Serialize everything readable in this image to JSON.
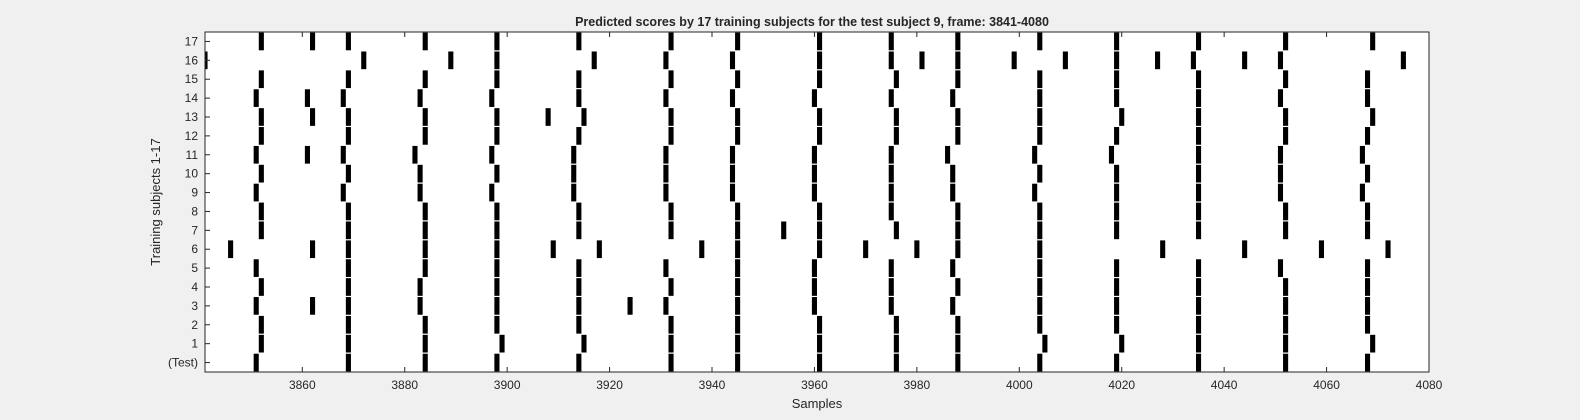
{
  "chart_data": {
    "type": "heatmap",
    "title": "Predicted scores by 17 training subjects for the test subject 9, frame: 3841-4080",
    "xlabel": "Samples",
    "ylabel": "Training subjects 1-17",
    "xlim": [
      3841,
      4080
    ],
    "x_ticks": [
      3860,
      3880,
      3900,
      3920,
      3940,
      3960,
      3980,
      4000,
      4020,
      4040,
      4060,
      4080
    ],
    "y_tick_labels": [
      "(Test)",
      "1",
      "2",
      "3",
      "4",
      "5",
      "6",
      "7",
      "8",
      "9",
      "10",
      "11",
      "12",
      "13",
      "14",
      "15",
      "16",
      "17"
    ],
    "rows": [
      {
        "label": "(Test)",
        "marks": [
          3851,
          3869,
          3884,
          3898,
          3914,
          3932,
          3945,
          3961,
          3976,
          3988,
          4004,
          4019,
          4035,
          4052,
          4068
        ]
      },
      {
        "label": "1",
        "marks": [
          3852,
          3869,
          3884,
          3899,
          3915,
          3932,
          3945,
          3961,
          3976,
          3988,
          4005,
          4020,
          4035,
          4052,
          4069
        ]
      },
      {
        "label": "2",
        "marks": [
          3852,
          3869,
          3884,
          3898,
          3914,
          3932,
          3945,
          3961,
          3976,
          3988,
          4004,
          4019,
          4035,
          4052,
          4068
        ]
      },
      {
        "label": "3",
        "marks": [
          3851,
          3862,
          3869,
          3883,
          3898,
          3914,
          3924,
          3931,
          3945,
          3960,
          3975,
          3987,
          4004,
          4019,
          4035,
          4052,
          4068
        ]
      },
      {
        "label": "4",
        "marks": [
          3852,
          3869,
          3883,
          3898,
          3914,
          3932,
          3945,
          3960,
          3975,
          3988,
          4004,
          4019,
          4035,
          4052,
          4068
        ]
      },
      {
        "label": "5",
        "marks": [
          3851,
          3869,
          3884,
          3898,
          3914,
          3931,
          3945,
          3960,
          3975,
          3987,
          4004,
          4019,
          4035,
          4051,
          4068
        ]
      },
      {
        "label": "6",
        "marks": [
          3846,
          3862,
          3869,
          3884,
          3898,
          3909,
          3918,
          3938,
          3945,
          3961,
          3970,
          3980,
          3988,
          4004,
          4028,
          4044,
          4059,
          4072
        ]
      },
      {
        "label": "7",
        "marks": [
          3852,
          3869,
          3884,
          3898,
          3914,
          3932,
          3945,
          3954,
          3961,
          3976,
          3988,
          4004,
          4019,
          4035,
          4052,
          4068
        ]
      },
      {
        "label": "8",
        "marks": [
          3852,
          3869,
          3884,
          3898,
          3914,
          3932,
          3945,
          3961,
          3975,
          3988,
          4004,
          4019,
          4035,
          4052,
          4068
        ]
      },
      {
        "label": "9",
        "marks": [
          3851,
          3868,
          3883,
          3897,
          3913,
          3931,
          3944,
          3960,
          3975,
          3987,
          4003,
          4019,
          4035,
          4051,
          4067
        ]
      },
      {
        "label": "10",
        "marks": [
          3852,
          3869,
          3883,
          3898,
          3913,
          3931,
          3944,
          3960,
          3975,
          3987,
          4004,
          4019,
          4035,
          4051,
          4068
        ]
      },
      {
        "label": "11",
        "marks": [
          3851,
          3861,
          3868,
          3882,
          3897,
          3913,
          3931,
          3944,
          3960,
          3975,
          3986,
          4003,
          4018,
          4035,
          4051,
          4067
        ]
      },
      {
        "label": "12",
        "marks": [
          3852,
          3869,
          3884,
          3898,
          3914,
          3932,
          3945,
          3961,
          3976,
          3988,
          4004,
          4019,
          4035,
          4052,
          4068
        ]
      },
      {
        "label": "13",
        "marks": [
          3852,
          3862,
          3869,
          3884,
          3898,
          3908,
          3915,
          3932,
          3945,
          3961,
          3976,
          3988,
          4004,
          4020,
          4035,
          4052,
          4069
        ]
      },
      {
        "label": "14",
        "marks": [
          3851,
          3861,
          3868,
          3883,
          3897,
          3914,
          3931,
          3944,
          3960,
          3975,
          3987,
          4004,
          4019,
          4035,
          4051,
          4068
        ]
      },
      {
        "label": "15",
        "marks": [
          3852,
          3869,
          3884,
          3898,
          3914,
          3932,
          3945,
          3961,
          3976,
          3988,
          4004,
          4019,
          4035,
          4052,
          4068
        ]
      },
      {
        "label": "16",
        "marks": [
          3841,
          3872,
          3889,
          3898,
          3917,
          3931,
          3944,
          3961,
          3975,
          3981,
          3988,
          3999,
          4009,
          4019,
          4027,
          4034,
          4044,
          4051,
          4075
        ]
      },
      {
        "label": "17",
        "marks": [
          3852,
          3862,
          3869,
          3884,
          3898,
          3914,
          3932,
          3945,
          3961,
          3975,
          3988,
          4004,
          4019,
          4035,
          4052,
          4069
        ]
      }
    ],
    "grid": false,
    "colors": {
      "mark": "#000000",
      "plot_bg": "#ffffff",
      "figure_bg": "#f0f0f0",
      "text": "#262626"
    }
  }
}
